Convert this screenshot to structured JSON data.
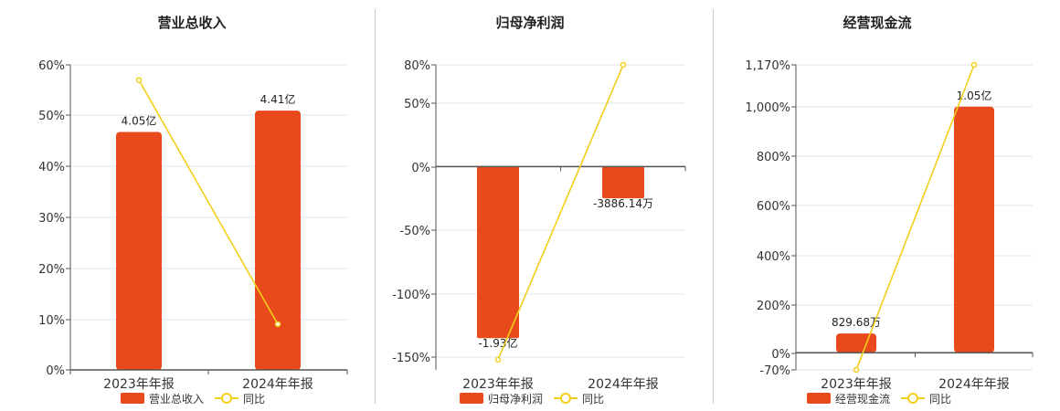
{
  "colors": {
    "bar": "#e84a1c",
    "line": "#f2cf1a",
    "grid": "#e3e6ee",
    "axis": "#555555"
  },
  "chart_data": [
    {
      "type": "bar",
      "title": "营业总收入",
      "categories": [
        "2023年年报",
        "2024年年报"
      ],
      "bar_series_name": "营业总收入",
      "line_series_name": "同比",
      "bar_labels": [
        "4.05亿",
        "4.41亿"
      ],
      "bar_values_pct": [
        46.8,
        51.0
      ],
      "line_values_pct": [
        57.0,
        9.0
      ],
      "yaxis_ticks": [
        "0%",
        "10%",
        "20%",
        "30%",
        "40%",
        "50%",
        "60%"
      ],
      "ylim": [
        0,
        60
      ],
      "grid": true,
      "legend": "bottom"
    },
    {
      "type": "bar",
      "title": "归母净利润",
      "categories": [
        "2023年年报",
        "2024年年报"
      ],
      "bar_series_name": "归母净利润",
      "line_series_name": "同比",
      "bar_labels": [
        "-1.93亿",
        "-3886.14万"
      ],
      "bar_values_pct": [
        -135,
        -25
      ],
      "line_values_pct": [
        -152,
        80
      ],
      "yaxis_ticks": [
        "80%",
        "50%",
        "0%",
        "-50%",
        "-100%",
        "-150%"
      ],
      "ylim": [
        -160,
        80
      ],
      "grid": true,
      "legend": "bottom"
    },
    {
      "type": "bar",
      "title": "经营现金流",
      "categories": [
        "2023年年报",
        "2024年年报"
      ],
      "bar_series_name": "经营现金流",
      "line_series_name": "同比",
      "bar_labels": [
        "829.68万",
        "1.05亿"
      ],
      "bar_values_pct": [
        78,
        1000
      ],
      "line_values_pct": [
        -70,
        1170
      ],
      "yaxis_ticks": [
        "1,170%",
        "1,000%",
        "800%",
        "600%",
        "400%",
        "200%",
        "0%",
        "-70%"
      ],
      "ylim": [
        -70,
        1170
      ],
      "grid": true,
      "legend": "bottom"
    }
  ]
}
